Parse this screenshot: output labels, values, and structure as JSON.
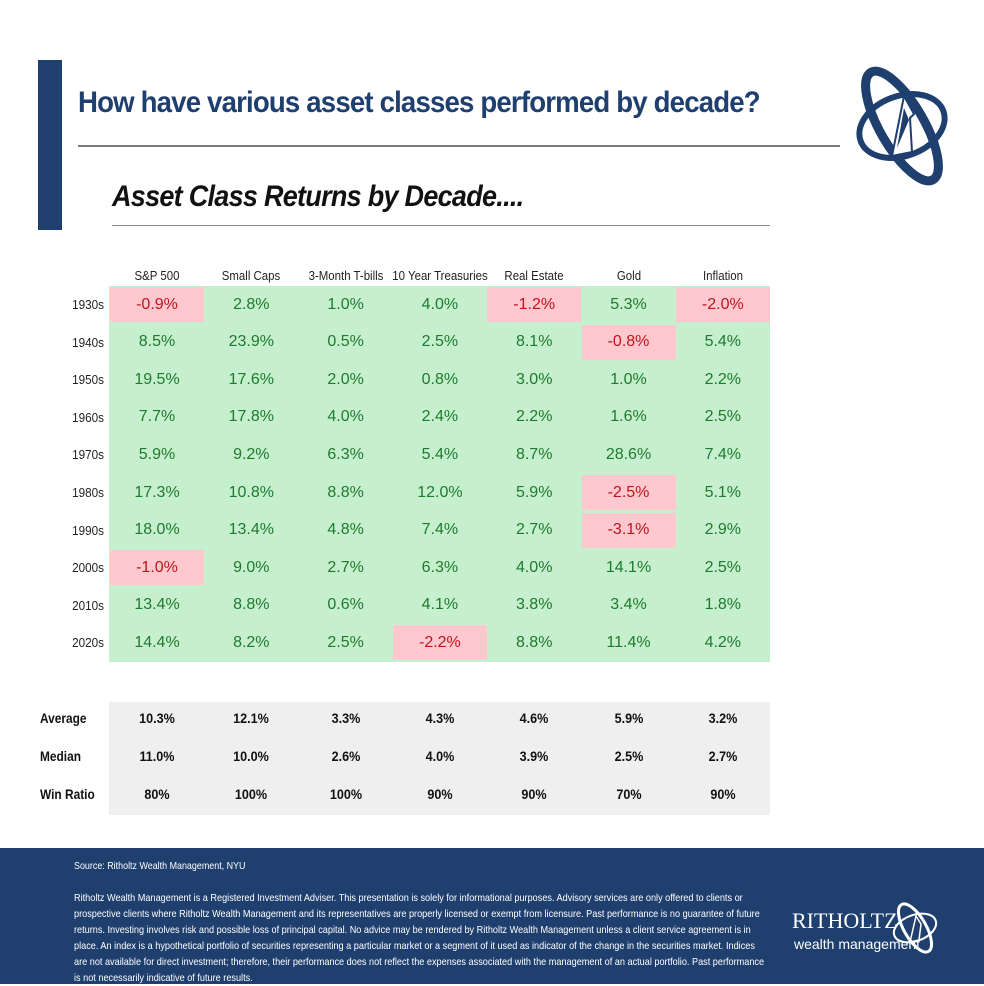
{
  "header": {
    "title": "How have various asset classes performed by decade?",
    "subtitle": "Asset Class Returns by Decade...."
  },
  "chart_data": {
    "type": "table",
    "title": "Asset Class Returns by Decade....",
    "columns": [
      "S&P 500",
      "Small Caps",
      "3-Month T-bills",
      "10 Year Treasuries",
      "Real Estate",
      "Gold",
      "Inflation"
    ],
    "rows": [
      {
        "label": "1930s",
        "values": [
          "-0.9%",
          "2.8%",
          "1.0%",
          "4.0%",
          "-1.2%",
          "5.3%",
          "-2.0%"
        ]
      },
      {
        "label": "1940s",
        "values": [
          "8.5%",
          "23.9%",
          "0.5%",
          "2.5%",
          "8.1%",
          "-0.8%",
          "5.4%"
        ]
      },
      {
        "label": "1950s",
        "values": [
          "19.5%",
          "17.6%",
          "2.0%",
          "0.8%",
          "3.0%",
          "1.0%",
          "2.2%"
        ]
      },
      {
        "label": "1960s",
        "values": [
          "7.7%",
          "17.8%",
          "4.0%",
          "2.4%",
          "2.2%",
          "1.6%",
          "2.5%"
        ]
      },
      {
        "label": "1970s",
        "values": [
          "5.9%",
          "9.2%",
          "6.3%",
          "5.4%",
          "8.7%",
          "28.6%",
          "7.4%"
        ]
      },
      {
        "label": "1980s",
        "values": [
          "17.3%",
          "10.8%",
          "8.8%",
          "12.0%",
          "5.9%",
          "-2.5%",
          "5.1%"
        ]
      },
      {
        "label": "1990s",
        "values": [
          "18.0%",
          "13.4%",
          "4.8%",
          "7.4%",
          "2.7%",
          "-3.1%",
          "2.9%"
        ]
      },
      {
        "label": "2000s",
        "values": [
          "-1.0%",
          "9.0%",
          "2.7%",
          "6.3%",
          "4.0%",
          "14.1%",
          "2.5%"
        ]
      },
      {
        "label": "2010s",
        "values": [
          "13.4%",
          "8.8%",
          "0.6%",
          "4.1%",
          "3.8%",
          "3.4%",
          "1.8%"
        ]
      },
      {
        "label": "2020s",
        "values": [
          "14.4%",
          "8.2%",
          "2.5%",
          "-2.2%",
          "8.8%",
          "11.4%",
          "4.2%"
        ]
      }
    ],
    "summary": [
      {
        "label": "Average",
        "values": [
          "10.3%",
          "12.1%",
          "3.3%",
          "4.3%",
          "4.6%",
          "5.9%",
          "3.2%"
        ]
      },
      {
        "label": "Median",
        "values": [
          "11.0%",
          "10.0%",
          "2.6%",
          "4.0%",
          "3.9%",
          "2.5%",
          "2.7%"
        ]
      },
      {
        "label": "Win Ratio",
        "values": [
          "80%",
          "100%",
          "100%",
          "90%",
          "90%",
          "70%",
          "90%"
        ]
      }
    ],
    "colors": {
      "positive_fill": "#c6efce",
      "positive_text": "#1e7a2e",
      "negative_fill": "#ffc7ce",
      "negative_text": "#c0141c",
      "summary_fill": "#efefef"
    }
  },
  "footer": {
    "source": "Source: Ritholtz Wealth Management, NYU",
    "disclaimer": "Ritholtz Wealth Management is a Registered Investment Adviser. This presentation is solely for informational purposes. Advisory services are only offered to clients or prospective clients where Ritholtz Wealth Management and its representatives are properly licensed or exempt from licensure. Past performance is no guarantee of future returns. Investing involves risk and possible loss of principal capital. No advice may be rendered by Ritholtz Wealth Management unless a client service agreement is in place. An index is a hypothetical portfolio of securities representing a particular market or a segment of it used as indicator of the change in the securities market. Indices are not available for direct investment; therefore, their performance does not reflect the expenses associated with the management of an actual portfolio. Past performance is not necessarily indicative of future results.",
    "brand_name": "RITHOLTZ",
    "brand_sub": "wealth management"
  },
  "brand_color": "#1f3f6e"
}
